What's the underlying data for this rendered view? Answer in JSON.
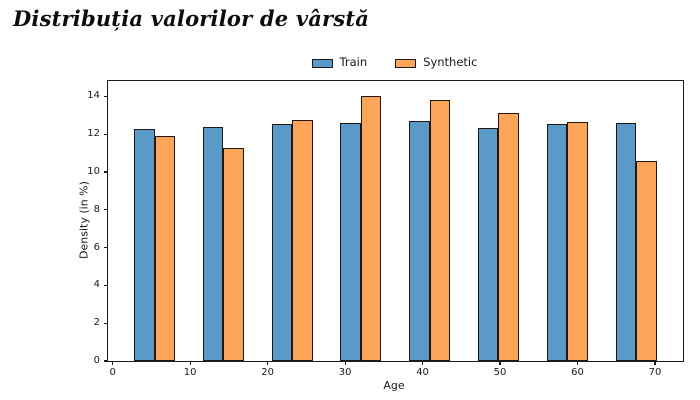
{
  "title": {
    "text": "Distribuția valorilor de vârstă"
  },
  "legend": {
    "items": [
      {
        "label": "Train",
        "color": "#5A9AC8"
      },
      {
        "label": "Synthetic",
        "color": "#FCA457"
      }
    ]
  },
  "chart_data": {
    "type": "bar",
    "title": "Distribuția valorilor de vârstă",
    "xlabel": "Age",
    "ylabel": "Density (in %)",
    "categories": [
      5.4,
      14.3,
      23.2,
      32.0,
      40.9,
      49.8,
      58.7,
      67.6
    ],
    "series": [
      {
        "name": "Train",
        "color": "#5A9AC8",
        "values": [
          12.25,
          12.4,
          12.55,
          12.6,
          12.7,
          12.35,
          12.55,
          12.6
        ]
      },
      {
        "name": "Synthetic",
        "color": "#FCA457",
        "values": [
          11.9,
          11.25,
          12.75,
          14.0,
          13.8,
          13.1,
          12.65,
          10.6
        ]
      }
    ],
    "bar_width": 2.67,
    "edge_color": "#211613",
    "xlim": [
      -0.61,
      73.62
    ],
    "ylim": [
      0,
      14.81
    ],
    "x_ticks": [
      0,
      10,
      20,
      30,
      40,
      50,
      60,
      70
    ],
    "y_ticks": [
      0,
      2,
      4,
      6,
      8,
      10,
      12,
      14
    ],
    "grid": false,
    "legend_position": "top-center"
  }
}
